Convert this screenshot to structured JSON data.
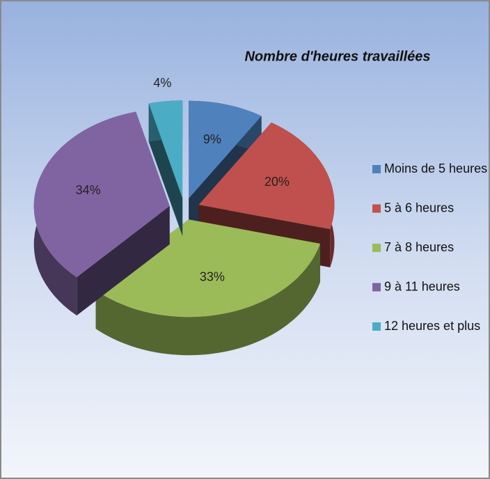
{
  "chart_data": {
    "type": "pie",
    "title": "Nombre d'heures travaillées",
    "categories": [
      "Moins de 5 heures",
      "5 à 6 heures",
      "7 à 8 heures",
      "9 à 11 heures",
      "12 heures et plus"
    ],
    "values": [
      9,
      20,
      33,
      34,
      4
    ],
    "value_labels": [
      "9%",
      "20%",
      "33%",
      "34%",
      "4%"
    ],
    "colors": [
      "#4f81bd",
      "#c0504d",
      "#9bbb59",
      "#8064a2",
      "#4bacc6"
    ],
    "legend": "right"
  }
}
